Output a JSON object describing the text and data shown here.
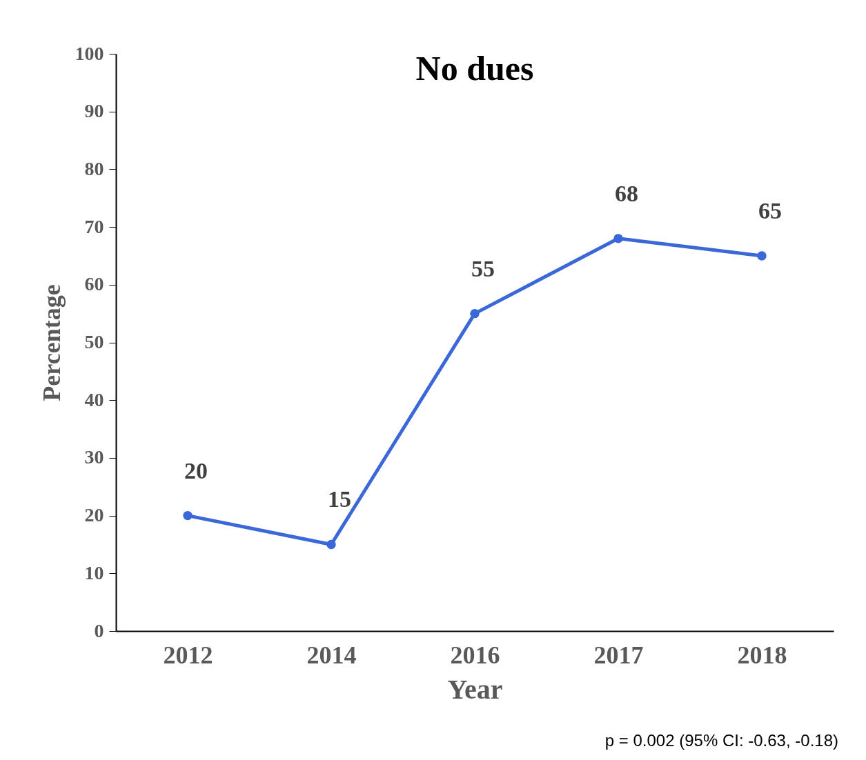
{
  "chart_data": {
    "type": "line",
    "title": "No dues",
    "xlabel": "Year",
    "ylabel": "Percentage",
    "categories": [
      "2012",
      "2014",
      "2016",
      "2017",
      "2018"
    ],
    "series": [
      {
        "color": "#3a68d8",
        "values": [
          20,
          15,
          55,
          68,
          65
        ]
      }
    ],
    "ylim": [
      0,
      100
    ],
    "yticks": [
      0,
      10,
      20,
      30,
      40,
      50,
      60,
      70,
      80,
      90,
      100
    ],
    "data_labels": true,
    "marker": "circle",
    "grid": false,
    "legend": false,
    "annotations": [
      "p = 0.002 (95% CI: -0.63, -0.18)"
    ]
  }
}
